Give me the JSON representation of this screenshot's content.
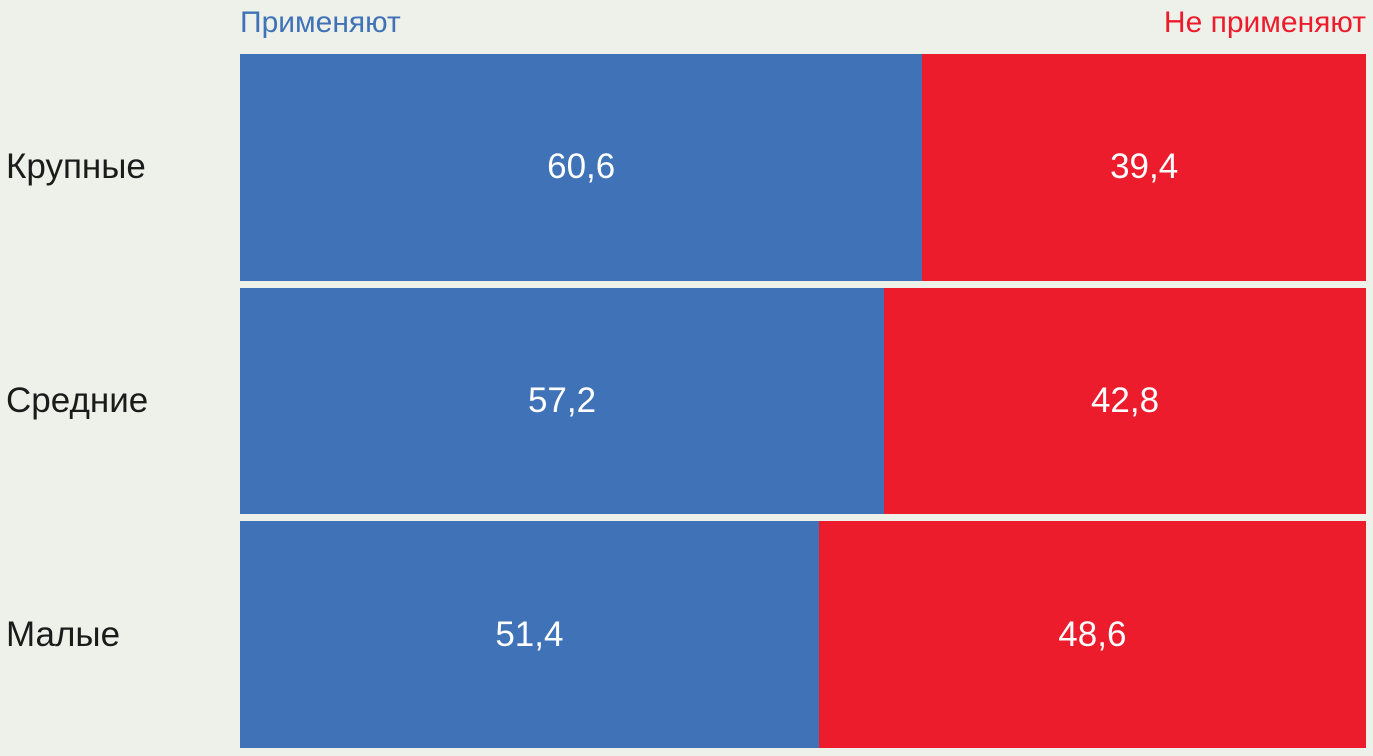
{
  "colors": {
    "applied": "#3F72B7",
    "not_applied": "#EC1C2D",
    "background": "#EEF0EA",
    "category_text": "#1B1B1B",
    "value_text": "#FFFFFF"
  },
  "chart_data": {
    "type": "bar",
    "subtype": "horizontal-stacked-100",
    "title": "",
    "xlabel": "",
    "ylabel": "",
    "xlim": [
      0,
      100
    ],
    "grid": false,
    "legend_position": "top",
    "decimal_separator": ",",
    "categories": [
      "Крупные",
      "Средние",
      "Малые"
    ],
    "series": [
      {
        "name": "Применяют",
        "color": "#3F72B7",
        "values": [
          60.6,
          57.2,
          51.4
        ],
        "labels": [
          "60,6",
          "57,2",
          "51,4"
        ]
      },
      {
        "name": "Не применяют",
        "color": "#EC1C2D",
        "values": [
          39.4,
          42.8,
          48.6
        ],
        "labels": [
          "39,4",
          "42,8",
          "48,6"
        ]
      }
    ]
  }
}
